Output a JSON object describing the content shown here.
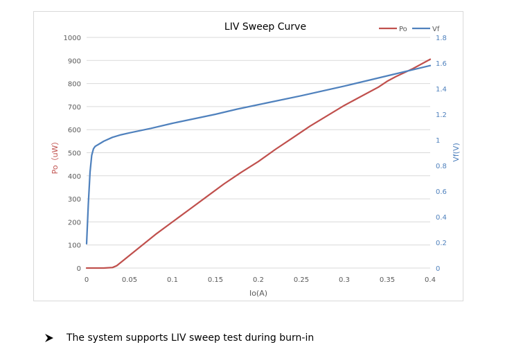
{
  "chart_data": {
    "type": "line",
    "title": "LIV Sweep Curve",
    "xlabel": "Io(A)",
    "ylabel_left": "Po（uW）",
    "ylabel_right": "Vf(V)",
    "xlim": [
      0,
      0.4
    ],
    "ylim_left": [
      0,
      1000
    ],
    "ylim_right": [
      0,
      1.8
    ],
    "x_ticks": [
      "0",
      "0.05",
      "0.1",
      "0.15",
      "0.2",
      "0.25",
      "0.3",
      "0.35",
      "0.4"
    ],
    "y_left_ticks": [
      "0",
      "100",
      "200",
      "300",
      "400",
      "500",
      "600",
      "700",
      "800",
      "900",
      "1000"
    ],
    "y_right_ticks": [
      "0",
      "0.2",
      "0.4",
      "0.6",
      "0.8",
      "1",
      "1.2",
      "1.4",
      "1.6",
      "1.8"
    ],
    "grid": "horizontal",
    "legend": "top-right",
    "series": [
      {
        "name": "Po",
        "axis": "left",
        "color": "#c0504d",
        "x": [
          0,
          0.01,
          0.02,
          0.03,
          0.035,
          0.04,
          0.05,
          0.06,
          0.07,
          0.08,
          0.1,
          0.12,
          0.14,
          0.16,
          0.18,
          0.2,
          0.22,
          0.24,
          0.26,
          0.28,
          0.3,
          0.32,
          0.34,
          0.35,
          0.36,
          0.38,
          0.4
        ],
        "y": [
          0,
          0,
          0,
          2,
          10,
          25,
          55,
          85,
          115,
          145,
          200,
          255,
          310,
          365,
          415,
          462,
          515,
          565,
          615,
          660,
          705,
          745,
          785,
          810,
          830,
          865,
          905
        ]
      },
      {
        "name": "Vf",
        "axis": "right",
        "color": "#4f81bd",
        "x": [
          0,
          0.002,
          0.004,
          0.006,
          0.008,
          0.01,
          0.015,
          0.02,
          0.03,
          0.04,
          0.05,
          0.075,
          0.1,
          0.125,
          0.15,
          0.175,
          0.2,
          0.25,
          0.3,
          0.35,
          0.4
        ],
        "y": [
          0.19,
          0.5,
          0.75,
          0.88,
          0.93,
          0.95,
          0.97,
          0.99,
          1.02,
          1.04,
          1.055,
          1.09,
          1.13,
          1.165,
          1.2,
          1.24,
          1.275,
          1.345,
          1.42,
          1.5,
          1.58
        ]
      }
    ]
  },
  "caption": {
    "text": "The system supports LIV sweep test during burn-in"
  }
}
